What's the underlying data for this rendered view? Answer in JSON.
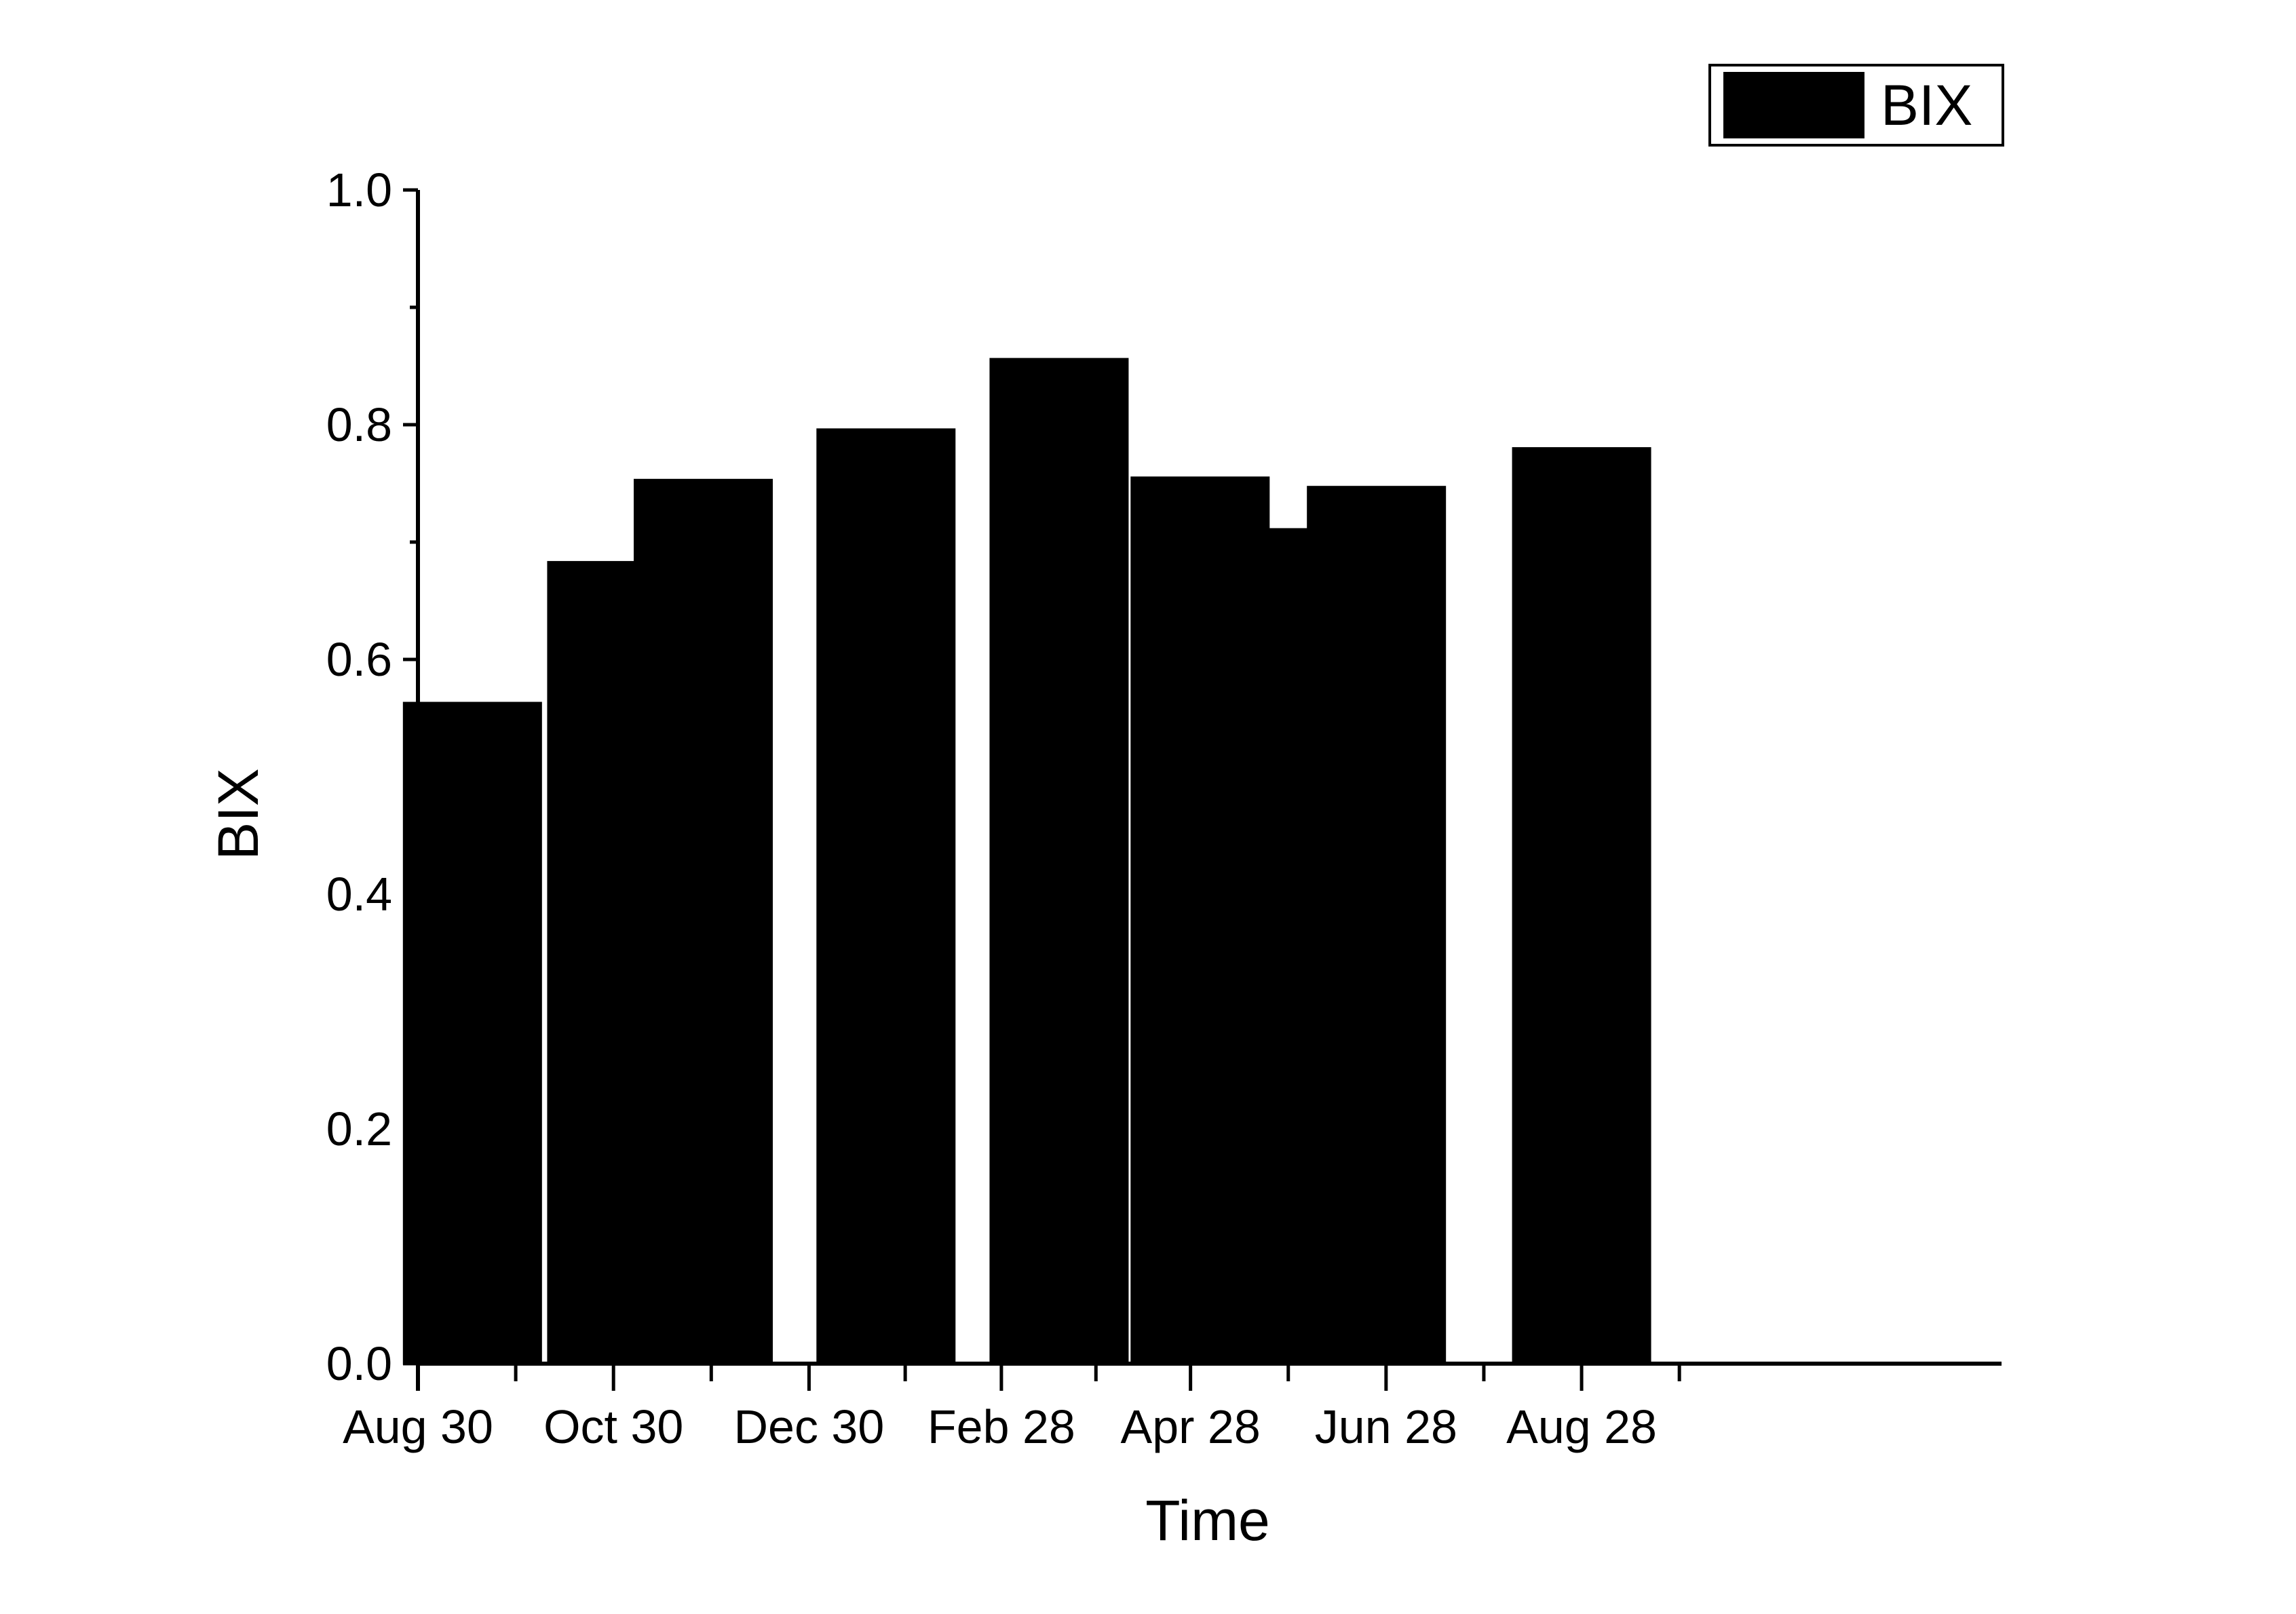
{
  "chart_data": {
    "type": "bar",
    "x": [
      "Sep 16",
      "Oct 31",
      "Nov 27",
      "Jan 23",
      "Mar 18",
      "May 1",
      "May 28",
      "Jun 25",
      "Aug 28"
    ],
    "values": [
      0.563,
      0.683,
      0.753,
      0.796,
      0.856,
      0.755,
      0.711,
      0.747,
      0.78
    ],
    "xlabel": "Time",
    "ylabel": "BIX",
    "xticks": [
      "Aug 30",
      "Oct 30",
      "Dec 30",
      "Feb 28",
      "Apr 28",
      "Jun 28",
      "Aug 28"
    ],
    "yticks": [
      "0.0",
      "0.2",
      "0.4",
      "0.6",
      "0.8",
      "1.0"
    ],
    "ylim": [
      0,
      1.0
    ],
    "legend": {
      "label": "BIX",
      "position": "top-right"
    },
    "grid": false,
    "bar_color": "#000000"
  }
}
